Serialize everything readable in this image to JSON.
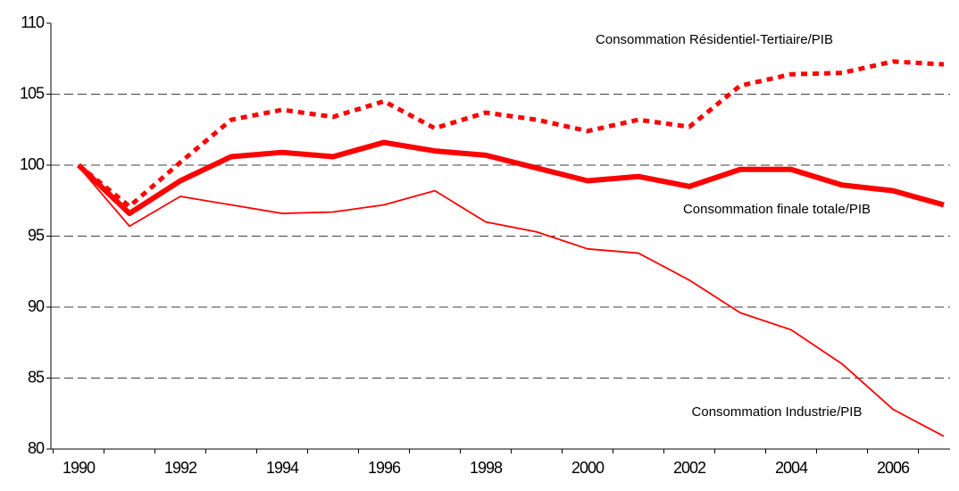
{
  "chart_data": {
    "type": "line",
    "categories": [
      "1990",
      null,
      "1992",
      null,
      "1994",
      null,
      "1996",
      null,
      "1998",
      null,
      "2000",
      null,
      "2002",
      null,
      "2004",
      null,
      "2006",
      null
    ],
    "series": [
      {
        "name": "Consommation Résidentiel-Tertiaire/PIB",
        "color": "#ff0000",
        "style": "dotted",
        "values": [
          100,
          97.1,
          100.2,
          103.2,
          103.9,
          103.4,
          104.5,
          102.6,
          103.7,
          103.2,
          102.4,
          103.2,
          102.7,
          105.6,
          106.4,
          106.5,
          107.3,
          107.1
        ]
      },
      {
        "name": "Consommation finale totale/PIB",
        "color": "#ff0000",
        "style": "thick",
        "values": [
          100,
          96.6,
          98.9,
          100.6,
          100.9,
          100.6,
          101.6,
          101.0,
          100.7,
          99.8,
          98.9,
          99.2,
          98.5,
          99.7,
          99.7,
          98.6,
          98.2,
          97.2
        ]
      },
      {
        "name": "Consommation Industrie/PIB",
        "color": "#ff0000",
        "style": "thin",
        "values": [
          99.9,
          95.7,
          97.8,
          97.2,
          96.6,
          96.7,
          97.2,
          98.2,
          96.0,
          95.3,
          94.1,
          93.8,
          91.9,
          89.6,
          88.4,
          86.0,
          82.8,
          80.9
        ]
      }
    ],
    "ylim": [
      80,
      110
    ],
    "yticks": [
      80,
      85,
      90,
      95,
      100,
      105,
      110
    ],
    "grid": true
  }
}
